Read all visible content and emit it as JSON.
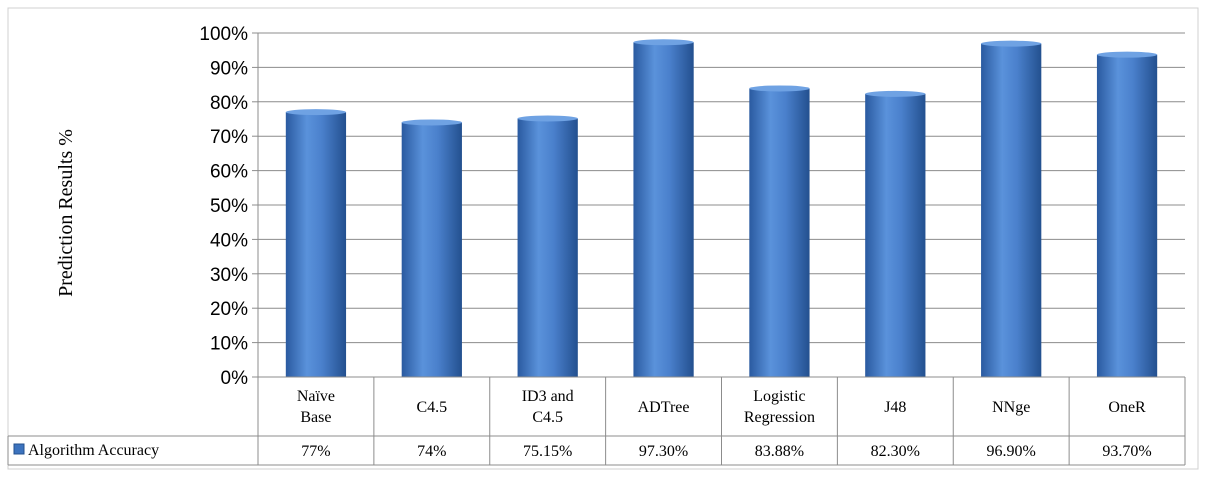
{
  "chart_data": {
    "type": "bar",
    "title": "",
    "xlabel": "",
    "ylabel": "Prediction Results %",
    "ylim": [
      0,
      100
    ],
    "y_ticks": [
      "0%",
      "10%",
      "20%",
      "30%",
      "40%",
      "50%",
      "60%",
      "70%",
      "80%",
      "90%",
      "100%"
    ],
    "grid": true,
    "categories": [
      [
        "Naïve",
        "Base"
      ],
      [
        "C4.5"
      ],
      [
        "ID3 and",
        "C4.5"
      ],
      [
        "ADTree"
      ],
      [
        "Logistic",
        "Regression"
      ],
      [
        "J48"
      ],
      [
        "NNge"
      ],
      [
        "OneR"
      ]
    ],
    "series": [
      {
        "name": "Algorithm Accuracy",
        "values": [
          77,
          74,
          75.15,
          97.3,
          83.88,
          82.3,
          96.9,
          93.7
        ],
        "value_labels": [
          "77%",
          "74%",
          "75.15%",
          "97.30%",
          "83.88%",
          "82.30%",
          "96.90%",
          "93.70%"
        ],
        "color": "#3c73be"
      }
    ],
    "legend_position": "data-table"
  }
}
